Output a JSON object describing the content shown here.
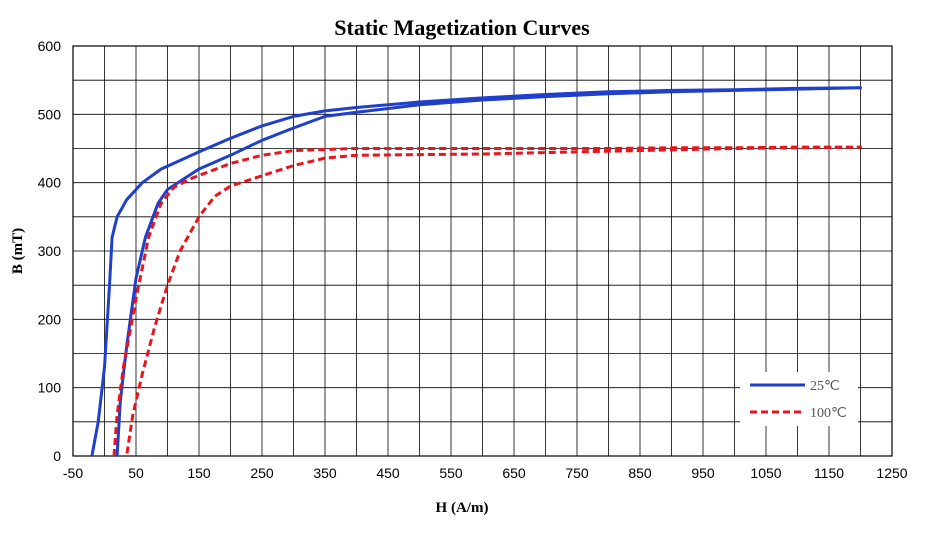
{
  "chart_data": {
    "type": "line",
    "title": "Static Magetization Curves",
    "xlabel": "H (A/m)",
    "ylabel": "B (mT)",
    "xlim": [
      -50,
      1250
    ],
    "ylim": [
      0,
      600
    ],
    "xticks": [
      -50,
      50,
      150,
      250,
      350,
      450,
      550,
      650,
      750,
      850,
      950,
      1050,
      1150,
      1250
    ],
    "yticks": [
      0,
      100,
      200,
      300,
      400,
      500,
      600
    ],
    "grid": true,
    "legend_position": "bottom-right",
    "series": [
      {
        "name": "25℃",
        "color": "#1f3fcc",
        "style": "solid",
        "upper_branch": [
          [
            -20,
            0
          ],
          [
            -10,
            50
          ],
          [
            0,
            130
          ],
          [
            8,
            250
          ],
          [
            12,
            320
          ],
          [
            20,
            350
          ],
          [
            35,
            375
          ],
          [
            60,
            400
          ],
          [
            90,
            420
          ],
          [
            150,
            445
          ],
          [
            200,
            465
          ],
          [
            250,
            483
          ],
          [
            300,
            497
          ],
          [
            350,
            505
          ],
          [
            400,
            510
          ],
          [
            500,
            518
          ],
          [
            600,
            524
          ],
          [
            700,
            529
          ],
          [
            800,
            533
          ],
          [
            900,
            535
          ],
          [
            1000,
            536
          ],
          [
            1100,
            538
          ],
          [
            1200,
            539
          ]
        ],
        "lower_branch": [
          [
            1200,
            539
          ],
          [
            1100,
            537
          ],
          [
            1000,
            535
          ],
          [
            900,
            533
          ],
          [
            800,
            530
          ],
          [
            700,
            526
          ],
          [
            600,
            521
          ],
          [
            500,
            514
          ],
          [
            400,
            503
          ],
          [
            350,
            497
          ],
          [
            300,
            480
          ],
          [
            250,
            462
          ],
          [
            200,
            440
          ],
          [
            150,
            420
          ],
          [
            100,
            390
          ],
          [
            85,
            370
          ],
          [
            65,
            320
          ],
          [
            50,
            260
          ],
          [
            35,
            160
          ],
          [
            25,
            80
          ],
          [
            20,
            0
          ]
        ]
      },
      {
        "name": "100℃",
        "color": "#e8141e",
        "style": "dashed",
        "upper_branch": [
          [
            15,
            0
          ],
          [
            20,
            60
          ],
          [
            30,
            130
          ],
          [
            50,
            230
          ],
          [
            70,
            320
          ],
          [
            90,
            370
          ],
          [
            110,
            393
          ],
          [
            140,
            407
          ],
          [
            200,
            428
          ],
          [
            250,
            440
          ],
          [
            300,
            447
          ],
          [
            400,
            450
          ],
          [
            500,
            450
          ],
          [
            600,
            450
          ],
          [
            700,
            450
          ],
          [
            800,
            450
          ],
          [
            900,
            451
          ],
          [
            1000,
            451
          ],
          [
            1100,
            452
          ],
          [
            1200,
            452
          ]
        ],
        "lower_branch": [
          [
            1200,
            452
          ],
          [
            1100,
            451
          ],
          [
            1000,
            450
          ],
          [
            900,
            448
          ],
          [
            800,
            446
          ],
          [
            700,
            444
          ],
          [
            600,
            442
          ],
          [
            500,
            441
          ],
          [
            400,
            440
          ],
          [
            350,
            436
          ],
          [
            300,
            425
          ],
          [
            250,
            410
          ],
          [
            200,
            395
          ],
          [
            175,
            380
          ],
          [
            150,
            350
          ],
          [
            120,
            300
          ],
          [
            100,
            250
          ],
          [
            80,
            190
          ],
          [
            60,
            120
          ],
          [
            45,
            60
          ],
          [
            35,
            0
          ]
        ]
      }
    ]
  }
}
